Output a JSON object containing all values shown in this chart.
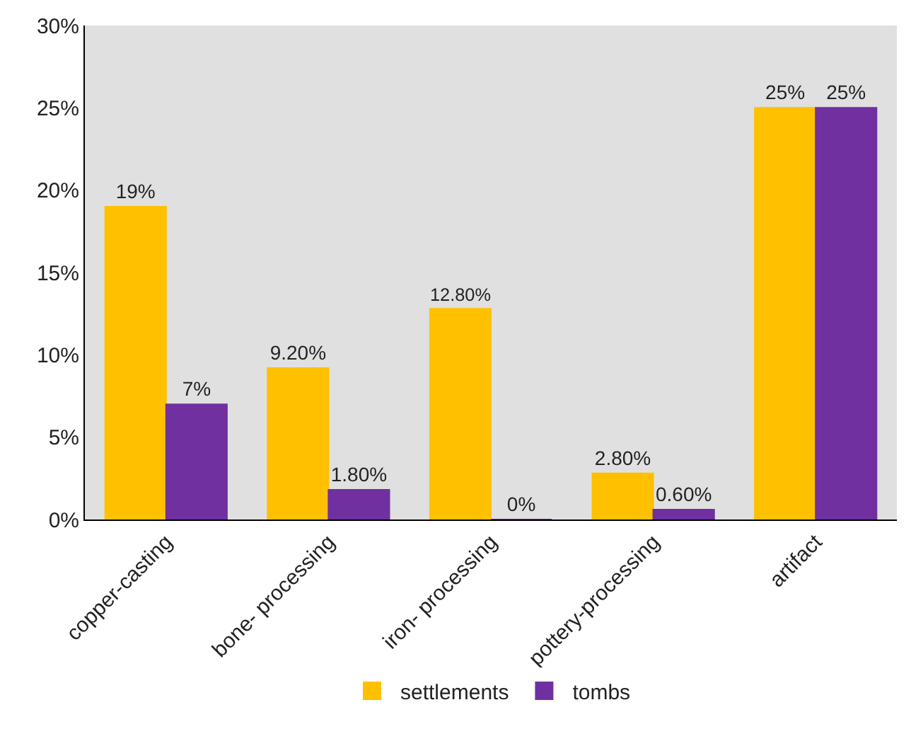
{
  "chart_data": {
    "type": "bar",
    "categories": [
      "copper-casting",
      "bone- processing",
      "iron- processing",
      "pottery-processing",
      "artifact"
    ],
    "series": [
      {
        "name": "settlements",
        "color": "#ffc000",
        "values": [
          19,
          9.2,
          12.8,
          2.8,
          25
        ],
        "value_labels": [
          "19%",
          "9.20%",
          "12.80%",
          "2.80%",
          "25%"
        ]
      },
      {
        "name": "tombs",
        "color": "#7030a0",
        "values": [
          7,
          1.8,
          0,
          0.6,
          25
        ],
        "value_labels": [
          "7%",
          "1.80%",
          "0%",
          "0.60%",
          "25%"
        ]
      }
    ],
    "ylim": [
      0,
      30
    ],
    "yticks": [
      {
        "value": 0,
        "label": "0%"
      },
      {
        "value": 5,
        "label": "5%"
      },
      {
        "value": 10,
        "label": "10%"
      },
      {
        "value": 15,
        "label": "15%"
      },
      {
        "value": 20,
        "label": "20%"
      },
      {
        "value": 25,
        "label": "25%"
      },
      {
        "value": 30,
        "label": "30%"
      }
    ],
    "grid": false,
    "legend": "bottom"
  }
}
